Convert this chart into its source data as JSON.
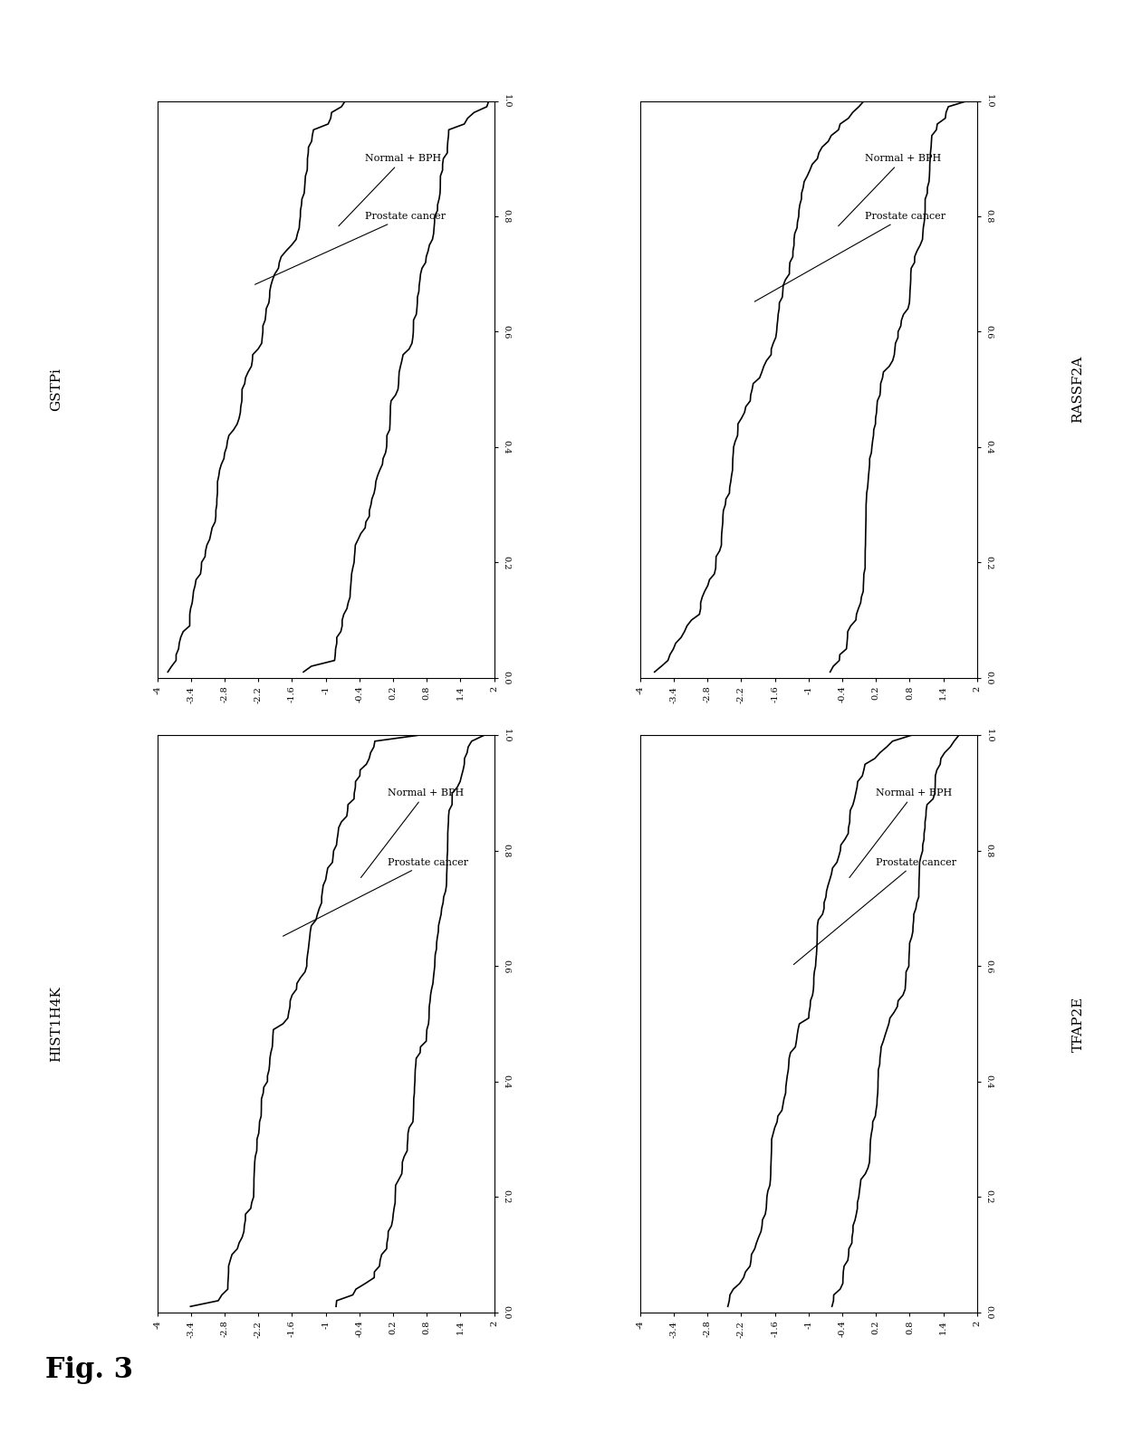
{
  "panels": [
    {
      "title": "GSTPi",
      "side": "left"
    },
    {
      "title": "RASSF2A",
      "side": "right"
    },
    {
      "title": "HIST1H4K",
      "side": "left"
    },
    {
      "title": "TFAP2E",
      "side": "right"
    }
  ],
  "fig_label": "Fig. 3",
  "bg_color": "#ffffff",
  "line_color": "#000000",
  "line_width": 1.2,
  "annotation_fontsize": 8,
  "title_fontsize": 11,
  "tick_fontsize": 7,
  "yticks": [
    -4,
    -3.4,
    -2.8,
    -2.2,
    -1.6,
    -1,
    -0.4,
    0.2,
    0.8,
    1.4,
    2
  ],
  "xticks": [
    0.0,
    0.2,
    0.4,
    0.6,
    0.8,
    1.0
  ],
  "ymin": -4.0,
  "ymax": 2.0,
  "xmin": 0.0,
  "xmax": 1.0
}
